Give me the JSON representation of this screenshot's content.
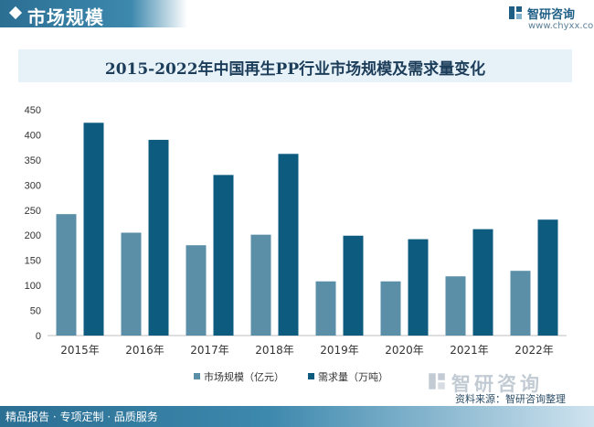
{
  "header": {
    "title": "市场规模"
  },
  "brand": {
    "name": "智研咨询",
    "url": "www.chyxx.com",
    "logo_icon": "zhiyan-logo-icon"
  },
  "watermark": {
    "text": "智研咨询"
  },
  "footer": {
    "left_text": "精品报告 · 专项定制 · 品质服务",
    "source": "资料来源：智研咨询整理"
  },
  "colors": {
    "series1": "#5b8fa8",
    "series2": "#0d5c80",
    "accent": "#2b6f93"
  },
  "chart_data": {
    "type": "bar",
    "title": "2015-2022年中国再生PP行业市场规模及需求量变化",
    "categories": [
      "2015年",
      "2016年",
      "2017年",
      "2018年",
      "2019年",
      "2020年",
      "2021年",
      "2022年"
    ],
    "series": [
      {
        "name": "市场规模（亿元）",
        "values": [
          242,
          205,
          180,
          201,
          108,
          108,
          118,
          129
        ]
      },
      {
        "name": "需求量（万吨）",
        "values": [
          424,
          390,
          320,
          362,
          199,
          192,
          212,
          231
        ]
      }
    ],
    "xlabel": "",
    "ylabel": "",
    "ylim": [
      0,
      450
    ],
    "yticks": [
      "0",
      "50",
      "100",
      "150",
      "200",
      "250",
      "300",
      "350",
      "400",
      "450"
    ],
    "grid": false,
    "legend": "bottom-center"
  }
}
